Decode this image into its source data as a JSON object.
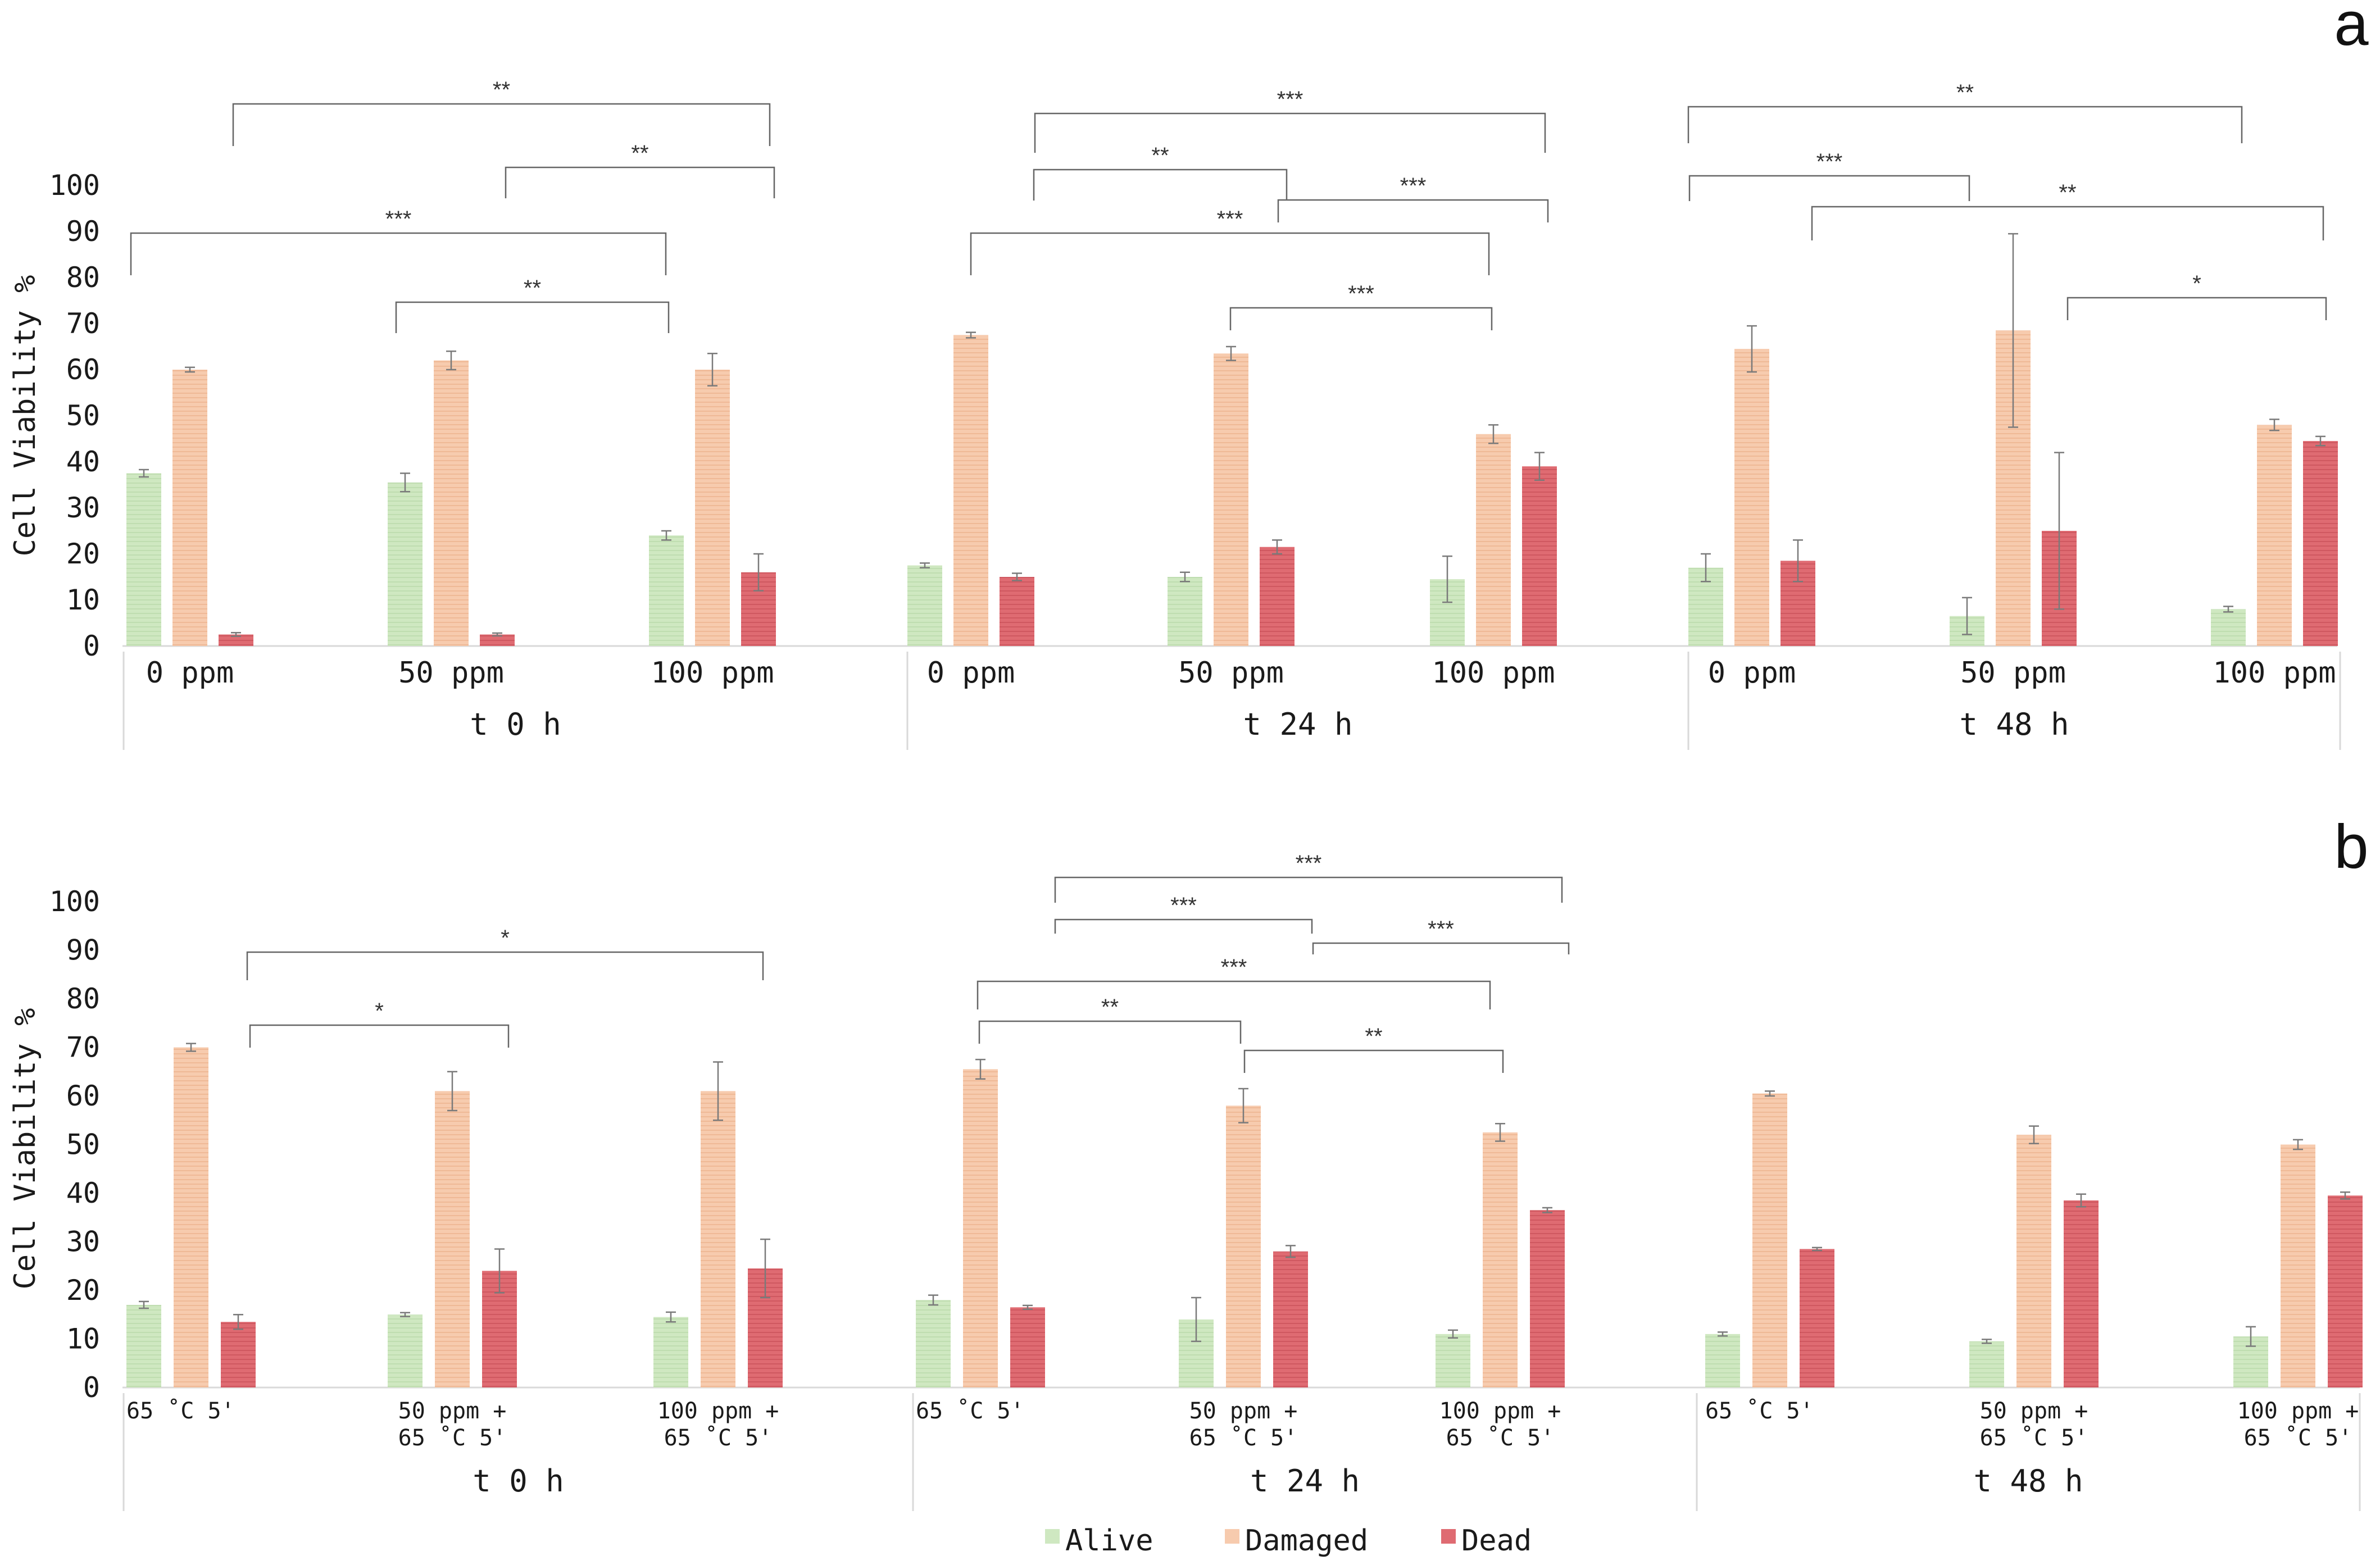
{
  "chart_data": [
    {
      "panel_label": "a",
      "type": "bar",
      "ylabel": "Cell Viability %",
      "ylim": [
        0,
        100
      ],
      "yticks": [
        0,
        10,
        20,
        30,
        40,
        50,
        60,
        70,
        80,
        90,
        100
      ],
      "series_names": [
        "Alive",
        "Damaged",
        "Dead"
      ],
      "groups": [
        {
          "name": "t 0 h",
          "categories": [
            {
              "label": "0 ppm",
              "values": [
                37.5,
                60,
                2.5
              ],
              "errors": [
                0.8,
                0.5,
                0.4
              ]
            },
            {
              "label": "50 ppm",
              "values": [
                35.5,
                62,
                2.5
              ],
              "errors": [
                2,
                2,
                0.3
              ]
            },
            {
              "label": "100 ppm",
              "values": [
                24,
                60,
                16
              ],
              "errors": [
                1,
                3.5,
                4
              ]
            }
          ]
        },
        {
          "name": "t 24 h",
          "categories": [
            {
              "label": "0 ppm",
              "values": [
                17.5,
                67.5,
                15
              ],
              "errors": [
                0.5,
                0.6,
                0.8
              ]
            },
            {
              "label": "50 ppm",
              "values": [
                15,
                63.5,
                21.5
              ],
              "errors": [
                1,
                1.5,
                1.5
              ]
            },
            {
              "label": "100 ppm",
              "values": [
                14.5,
                46,
                39
              ],
              "errors": [
                5,
                2,
                3
              ]
            }
          ]
        },
        {
          "name": "t 48 h",
          "categories": [
            {
              "label": "0 ppm",
              "values": [
                17,
                64.5,
                18.5
              ],
              "errors": [
                3,
                5,
                4.5
              ]
            },
            {
              "label": "50 ppm",
              "values": [
                6.5,
                68.5,
                25
              ],
              "errors": [
                4,
                21,
                17
              ]
            },
            {
              "label": "100 ppm",
              "values": [
                8,
                48,
                44.5
              ],
              "errors": [
                0.6,
                1.2,
                1
              ]
            }
          ]
        }
      ],
      "significance": [
        {
          "group": 0,
          "from": 0,
          "to": 2,
          "label": "***"
        },
        {
          "group": 0,
          "from": 0,
          "to": 2,
          "label": "**"
        },
        {
          "group": 0,
          "from": 1,
          "to": 2,
          "label": "**"
        },
        {
          "group": 0,
          "from": 1,
          "to": 2,
          "label": "**"
        },
        {
          "group": 1,
          "from": 0,
          "to": 2,
          "label": "***"
        },
        {
          "group": 1,
          "from": 0,
          "to": 1,
          "label": "**"
        },
        {
          "group": 1,
          "from": 1,
          "to": 2,
          "label": "***"
        },
        {
          "group": 1,
          "from": 0,
          "to": 2,
          "label": "***"
        },
        {
          "group": 1,
          "from": 1,
          "to": 2,
          "label": "***"
        },
        {
          "group": 2,
          "from": 0,
          "to": 2,
          "label": "**"
        },
        {
          "group": 2,
          "from": 0,
          "to": 1,
          "label": "***"
        },
        {
          "group": 2,
          "from": 1,
          "to": 2,
          "label": "**"
        },
        {
          "group": 2,
          "from": 1,
          "to": 2,
          "label": "*"
        }
      ]
    },
    {
      "panel_label": "b",
      "type": "bar",
      "ylabel": "Cell Viability %",
      "ylim": [
        0,
        100
      ],
      "yticks": [
        0,
        10,
        20,
        30,
        40,
        50,
        60,
        70,
        80,
        90,
        100
      ],
      "series_names": [
        "Alive",
        "Damaged",
        "Dead"
      ],
      "groups": [
        {
          "name": "t 0 h",
          "categories": [
            {
              "label": [
                "65 ˚C 5'"
              ],
              "values": [
                17,
                70,
                13.5
              ],
              "errors": [
                0.7,
                0.8,
                1.5
              ]
            },
            {
              "label": [
                "50 ppm +",
                "65 ˚C 5'"
              ],
              "values": [
                15,
                61,
                24
              ],
              "errors": [
                0.4,
                4,
                4.5
              ]
            },
            {
              "label": [
                "100 ppm +",
                "65 ˚C 5'"
              ],
              "values": [
                14.5,
                61,
                24.5
              ],
              "errors": [
                1,
                6,
                6
              ]
            }
          ]
        },
        {
          "name": "t 24 h",
          "categories": [
            {
              "label": [
                "65 ˚C 5'"
              ],
              "values": [
                18,
                65.5,
                16.5
              ],
              "errors": [
                1,
                2,
                0.4
              ]
            },
            {
              "label": [
                "50 ppm +",
                "65 ˚C 5'"
              ],
              "values": [
                14,
                58,
                28
              ],
              "errors": [
                4.5,
                3.5,
                1.2
              ]
            },
            {
              "label": [
                "100 ppm +",
                "65 ˚C 5'"
              ],
              "values": [
                11,
                52.5,
                36.5
              ],
              "errors": [
                0.8,
                1.8,
                0.5
              ]
            }
          ]
        },
        {
          "name": "t 48 h",
          "categories": [
            {
              "label": [
                "65 ˚C 5'"
              ],
              "values": [
                11,
                60.5,
                28.5
              ],
              "errors": [
                0.4,
                0.5,
                0.3
              ]
            },
            {
              "label": [
                "50 ppm +",
                "65 ˚C 5'"
              ],
              "values": [
                9.5,
                52,
                38.5
              ],
              "errors": [
                0.4,
                1.8,
                1.3
              ]
            },
            {
              "label": [
                "100 ppm +",
                "65 ˚C 5'"
              ],
              "values": [
                10.5,
                50,
                39.5
              ],
              "errors": [
                2,
                1,
                0.7
              ]
            }
          ]
        }
      ],
      "significance": [
        {
          "group": 0,
          "from": 0,
          "to": 1,
          "label": "*"
        },
        {
          "group": 0,
          "from": 0,
          "to": 2,
          "label": "*"
        },
        {
          "group": 1,
          "from": 0,
          "to": 2,
          "label": "***"
        },
        {
          "group": 1,
          "from": 0,
          "to": 1,
          "label": "***"
        },
        {
          "group": 1,
          "from": 1,
          "to": 2,
          "label": "***"
        },
        {
          "group": 1,
          "from": 0,
          "to": 2,
          "label": "***"
        },
        {
          "group": 1,
          "from": 0,
          "to": 1,
          "label": "**"
        },
        {
          "group": 1,
          "from": 1,
          "to": 2,
          "label": "**"
        }
      ]
    }
  ],
  "legend": {
    "placement": "bottom-center",
    "items": [
      {
        "name": "Alive",
        "color": "#cfe8c1"
      },
      {
        "name": "Damaged",
        "color": "#f7cbae"
      },
      {
        "name": "Dead",
        "color": "#df6b72"
      }
    ]
  },
  "colors": {
    "alive": "#cfe8c1",
    "damaged": "#f7cbae",
    "dead": "#df6b72",
    "error_bar": "#7a7a7a",
    "bracket": "#666666",
    "axis": "#d9d9d9"
  }
}
